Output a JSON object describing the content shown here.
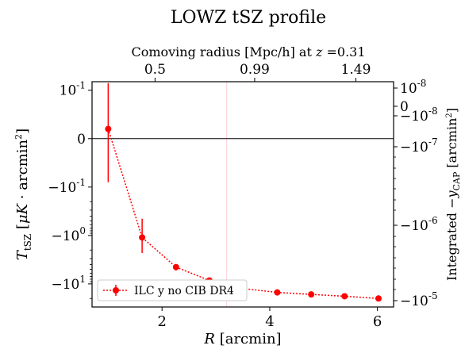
{
  "chart_data": {
    "type": "scatter",
    "title": "LOWZ tSZ profile",
    "top_axis": {
      "label": "Comoving radius [Mpc/h] at z =0.31",
      "ticks": [
        {
          "label": "0.5",
          "r": 1.87
        },
        {
          "label": "0.99",
          "r": 3.72
        },
        {
          "label": "1.49",
          "r": 5.6
        }
      ]
    },
    "xlabel": "R [arcmin]",
    "xlim": [
      0.7,
      6.3
    ],
    "xticks": [
      2,
      4,
      6
    ],
    "ylabel": "T_tSZ [μK · arcmin²]",
    "ylim": [
      -30,
      0.15
    ],
    "yscale": "symlog",
    "linthresh": 0.1,
    "left_ticks": [
      {
        "value": 0.1,
        "label": "10^-1"
      },
      {
        "value": 0,
        "label": "0"
      },
      {
        "value": -0.1,
        "label": "−10^-1"
      },
      {
        "value": -1,
        "label": "−10^0"
      },
      {
        "value": -10,
        "label": "−10^1"
      }
    ],
    "right_axis": {
      "label": "Integrated −y_CAP [arcmin²]",
      "ticks": [
        {
          "label": "10^-8"
        },
        {
          "label": "0"
        },
        {
          "label": "−10^-8"
        },
        {
          "label": "−10^-7"
        },
        {
          "label": "−10^-6"
        },
        {
          "label": "−10^-5"
        }
      ]
    },
    "reference_vline": 3.2,
    "zero_line": true,
    "series": [
      {
        "name": "ILC y no CIB DR4",
        "color": "#ff0000",
        "x": [
          1.0,
          1.63,
          2.26,
          2.88,
          3.51,
          4.14,
          4.77,
          5.39,
          6.02
        ],
        "y": [
          0.02,
          -1.1,
          -4.5,
          -8.5,
          -12.5,
          -15.0,
          -16.5,
          -18.0,
          -20.0
        ],
        "yerr_low": [
          -0.09,
          -2.3,
          -5.3,
          -9.0,
          -13.0,
          -15.4,
          -17.0,
          -18.5,
          -20.6
        ],
        "yerr_high": [
          0.14,
          -0.45,
          -3.9,
          -8.0,
          -12.0,
          -14.6,
          -16.0,
          -17.5,
          -19.4
        ]
      }
    ]
  }
}
